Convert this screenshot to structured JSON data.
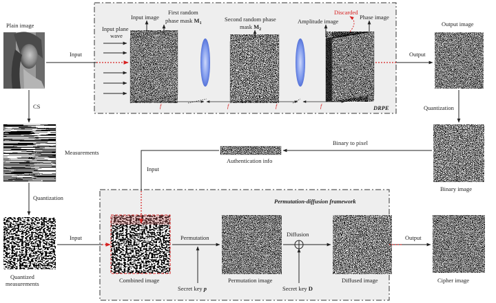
{
  "colors": {
    "accent_red": "#d62020",
    "lens_blue": "#6f8fe8",
    "panel_bg": "#eeeeee",
    "border": "#333333"
  },
  "labels": {
    "plain_image": "Plain image",
    "cs": "CS",
    "measurements": "Measurements",
    "quantization_left": "Quantization",
    "quantized_measurements": [
      "Quantized",
      "measurements"
    ],
    "input_top": "Input",
    "input_bottom": "Input",
    "input_auth": "Input",
    "input_plane_wave": [
      "Input plane",
      "wave"
    ],
    "input_image": "Input image",
    "first_mask": [
      "First random",
      "phase mask "
    ],
    "first_mask_sym": "M",
    "first_mask_sub": "1",
    "second_mask": [
      "Second random phase",
      "mask "
    ],
    "second_mask_sym": "M",
    "second_mask_sub": "2",
    "amplitude_image": "Amplitude image",
    "discarded": "Discarded",
    "phase_image": "Phase image",
    "drpe": "DRPE",
    "focal": "f",
    "output_top": "Output",
    "output_image": "Output image",
    "quantization_right": "Quantization",
    "binary_image": "Binary image",
    "binary_to_pixel": "Binary to pixel",
    "authentication_info": "Authentication  info",
    "framework_title": "Permutation-diffusion framework",
    "permutation": "Permutation",
    "diffusion": "Diffusion",
    "combined_image": "Combined image",
    "secret_key_p": "Secret key ",
    "secret_key_p_sym": "p",
    "permutation_image": "Permutation  image",
    "secret_key_d": "Secret key ",
    "secret_key_d_sym": "D",
    "diffused_image": "Diffused image",
    "output_bottom": "Output",
    "cipher_image": "Cipher image"
  }
}
